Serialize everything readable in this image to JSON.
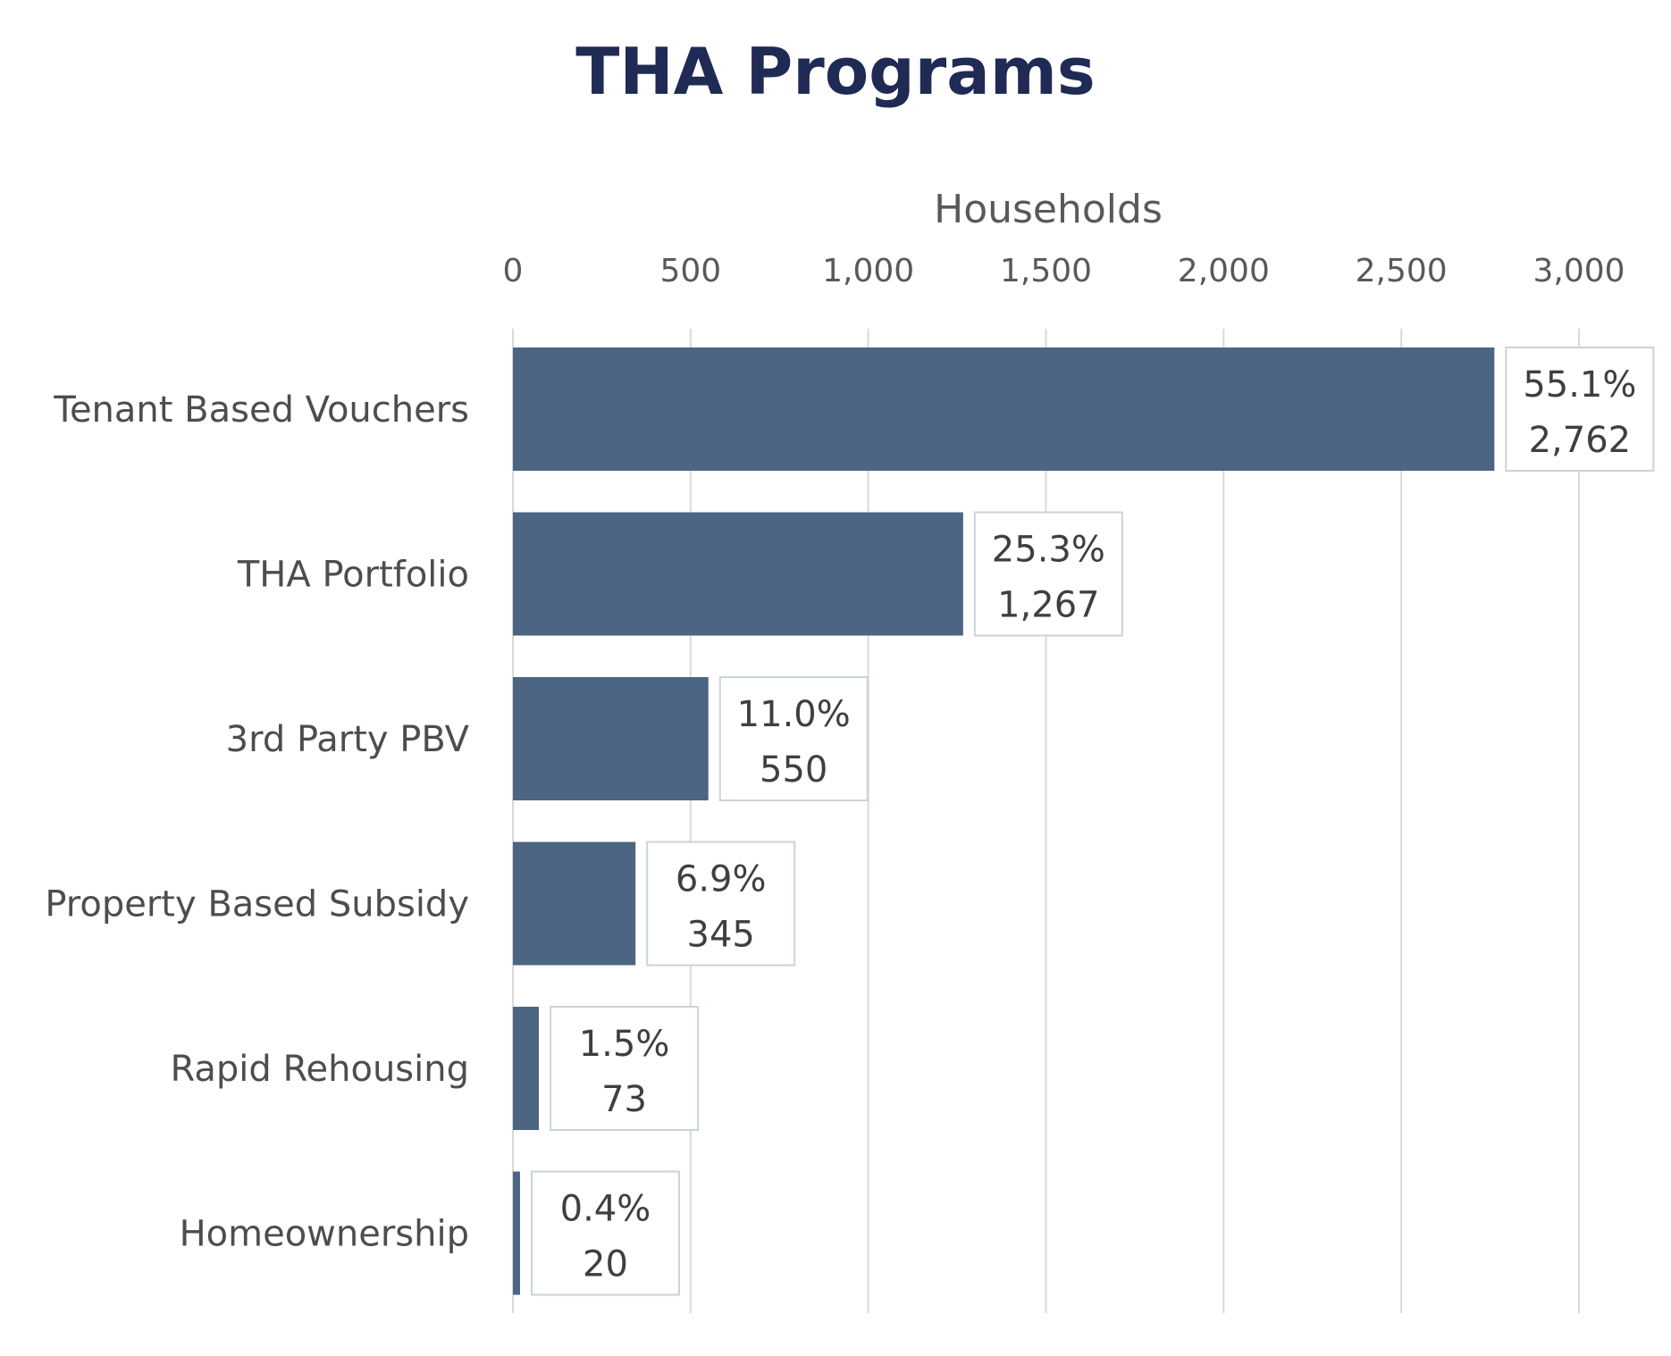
{
  "chart_data": {
    "type": "bar",
    "orientation": "horizontal",
    "title": "THA Programs",
    "xlabel": "Households",
    "ylabel": "",
    "xlim": [
      0,
      3100
    ],
    "x_ticks": [
      0,
      500,
      1000,
      1500,
      2000,
      2500,
      3000
    ],
    "x_tick_labels": [
      "0",
      "500",
      "1,000",
      "1,500",
      "2,000",
      "2,500",
      "3,000"
    ],
    "x_axis_position": "top",
    "grid": "vertical",
    "categories": [
      "Tenant Based Vouchers",
      "THA Portfolio",
      "3rd Party PBV",
      "Property Based Subsidy",
      "Rapid Rehousing",
      "Homeownership"
    ],
    "values": [
      2762,
      1267,
      550,
      345,
      73,
      20
    ],
    "data_labels": [
      {
        "pct": "55.1%",
        "count": "2,762"
      },
      {
        "pct": "25.3%",
        "count": "1,267"
      },
      {
        "pct": "11.0%",
        "count": "550"
      },
      {
        "pct": "6.9%",
        "count": "345"
      },
      {
        "pct": "1.5%",
        "count": "73"
      },
      {
        "pct": "0.4%",
        "count": "20"
      }
    ],
    "colors": {
      "bar": "#4b6582",
      "grid": "#d9d9d9",
      "label_border": "#c9d3de",
      "title": "#1f2a55"
    }
  }
}
